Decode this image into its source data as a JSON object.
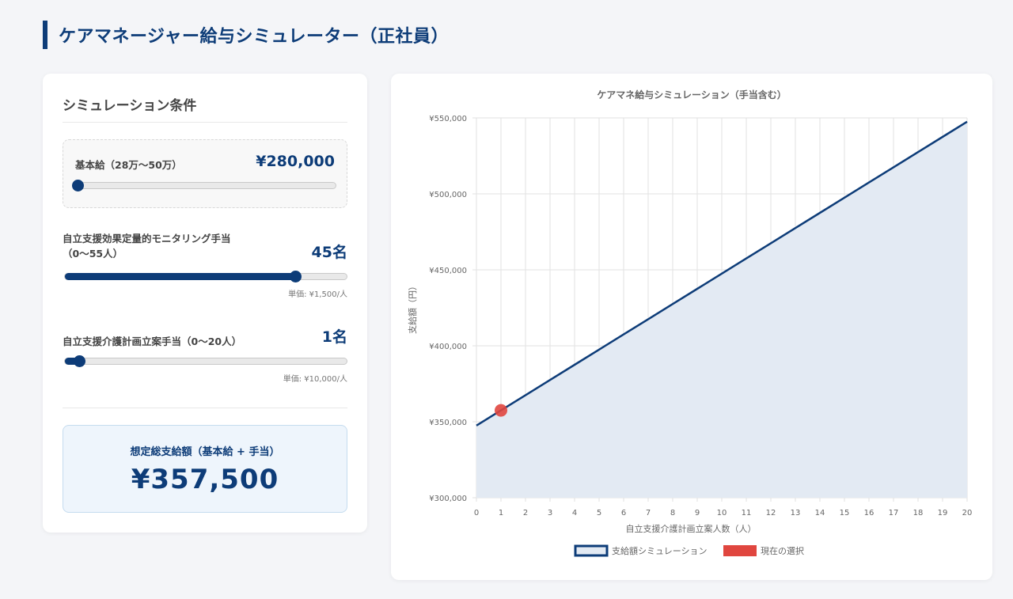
{
  "page": {
    "title": "ケアマネージャー給与シミュレーター（正社員）"
  },
  "panel": {
    "title": "シミュレーション条件",
    "base_salary": {
      "label": "基本給（28万〜50万）",
      "value": "¥280,000",
      "slider_fraction": 0.0
    },
    "monitoring": {
      "label_line1": "自立支援効果定量的モニタリング手当",
      "label_line2": "（0〜55人）",
      "value": "45名",
      "slider_fraction": 0.818,
      "unit_note": "単価: ¥1,500/人"
    },
    "plan": {
      "label": "自立支援介護計画立案手当（0〜20人）",
      "value": "1名",
      "slider_fraction": 0.05,
      "unit_note": "単価: ¥10,000/人"
    },
    "total": {
      "label": "想定総支給額（基本給 + 手当）",
      "value": "¥357,500"
    }
  },
  "chart_data": {
    "type": "line",
    "title": "ケアマネ給与シミュレーション（手当含む）",
    "xlabel": "自立支援介護計画立案人数（人）",
    "ylabel": "支給額（円）",
    "x": [
      0,
      1,
      2,
      3,
      4,
      5,
      6,
      7,
      8,
      9,
      10,
      11,
      12,
      13,
      14,
      15,
      16,
      17,
      18,
      19,
      20
    ],
    "ylim": [
      300000,
      550000
    ],
    "yticks": [
      300000,
      350000,
      400000,
      450000,
      500000,
      550000
    ],
    "ytick_labels": [
      "¥300,000",
      "¥350,000",
      "¥400,000",
      "¥450,000",
      "¥500,000",
      "¥550,000"
    ],
    "series": [
      {
        "name": "支給額シミュレーション",
        "color": "#0d3c78",
        "fill": "#e3eaf3",
        "values": [
          347500,
          357500,
          367500,
          377500,
          387500,
          397500,
          407500,
          417500,
          427500,
          437500,
          447500,
          457500,
          467500,
          477500,
          487500,
          497500,
          507500,
          517500,
          527500,
          537500,
          547500
        ]
      },
      {
        "name": "現在の選択",
        "color": "#e0463f",
        "type": "point",
        "points": [
          {
            "x": 1,
            "y": 357500
          }
        ]
      }
    ],
    "grid": true,
    "legend_position": "bottom"
  }
}
